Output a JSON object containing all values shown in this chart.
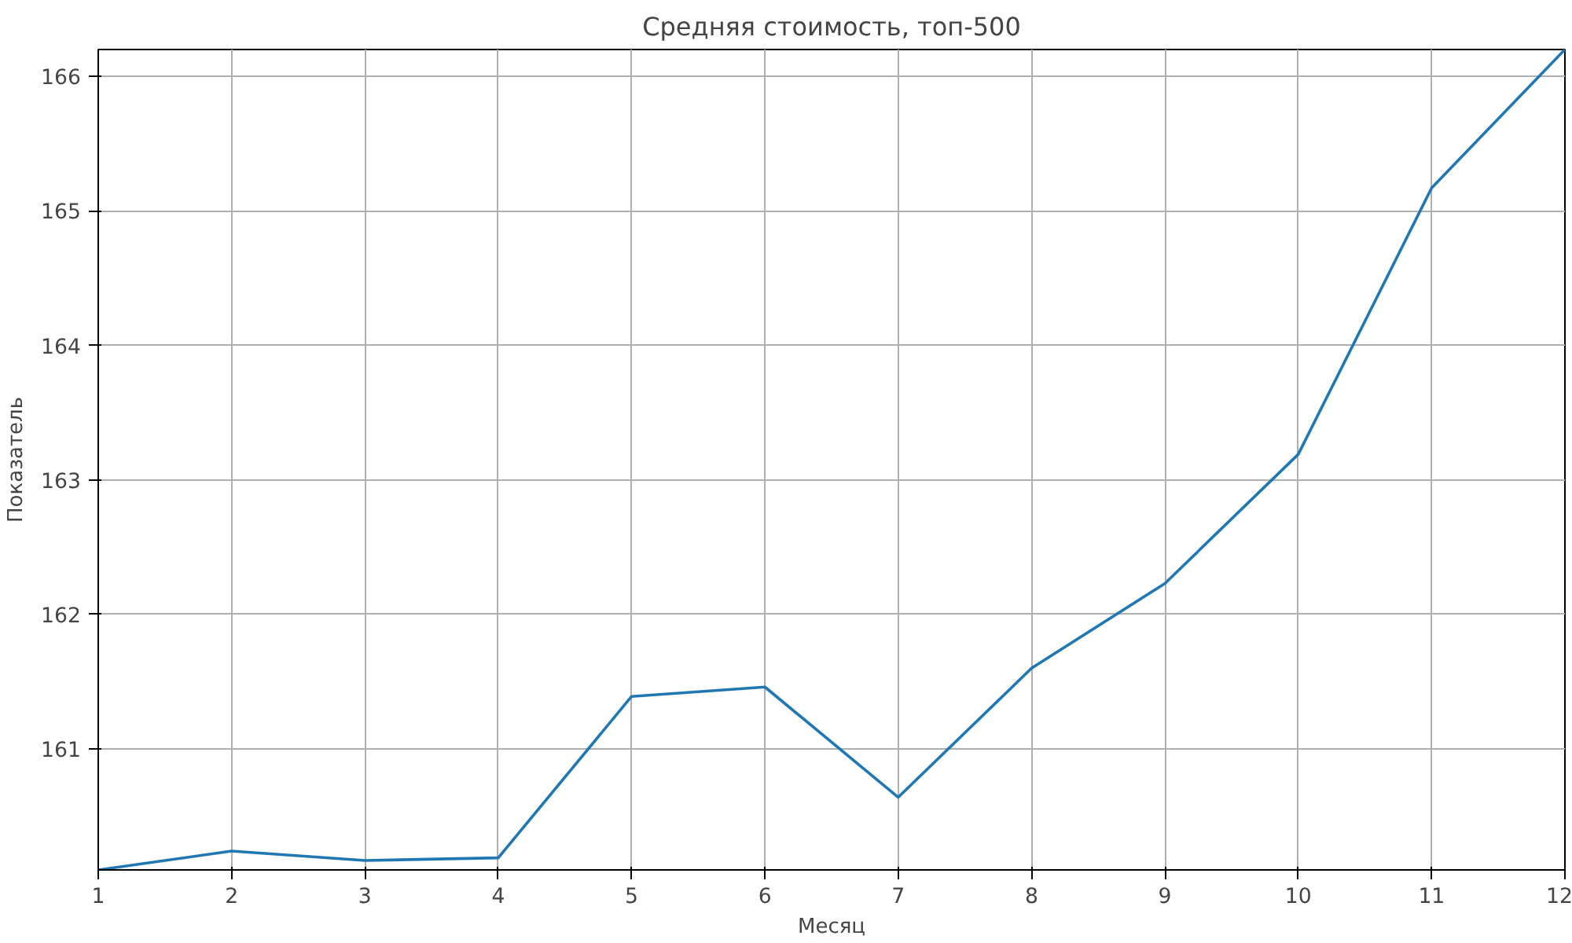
{
  "chart_data": {
    "type": "line",
    "title": "Средняя стоимость, топ-500",
    "xlabel": "Месяц",
    "ylabel": "Показатель",
    "x": [
      1,
      2,
      3,
      4,
      5,
      6,
      7,
      8,
      9,
      10,
      11,
      12
    ],
    "series": [
      {
        "color": "#1f77b4",
        "values": [
          160.1,
          160.24,
          160.17,
          160.19,
          161.39,
          161.46,
          160.64,
          161.6,
          162.23,
          163.19,
          165.17,
          166.2
        ]
      }
    ],
    "xlim": [
      1,
      12
    ],
    "ylim": [
      160.1,
      166.2
    ],
    "xticks": [
      1,
      2,
      3,
      4,
      5,
      6,
      7,
      8,
      9,
      10,
      11,
      12
    ],
    "yticks": [
      161,
      162,
      163,
      164,
      165,
      166
    ],
    "grid": true,
    "line_style": "solid"
  }
}
